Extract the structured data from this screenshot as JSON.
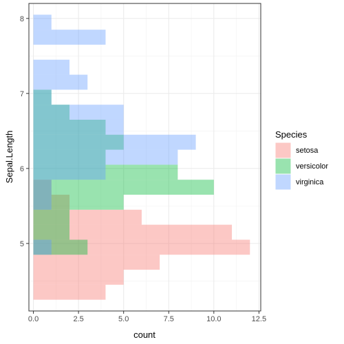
{
  "chart_data": {
    "type": "bar",
    "orientation": "horizontal-histogram",
    "xlabel": "count",
    "ylabel": "Sepal.Length",
    "xlim": [
      -0.25,
      12.6
    ],
    "ylim": [
      4.1,
      8.2
    ],
    "x_ticks": [
      0,
      2.5,
      5,
      7.5,
      10,
      12.5
    ],
    "x_tick_labels": [
      "0.0",
      "2.5",
      "5.0",
      "7.5",
      "10.0",
      "12.5"
    ],
    "y_ticks": [
      5,
      6,
      7,
      8
    ],
    "y_tick_labels": [
      "5",
      "6",
      "7",
      "8"
    ],
    "grid": true,
    "legend": {
      "title": "Species",
      "position": "right"
    },
    "bin_edges": [
      4.25,
      4.45,
      4.65,
      4.85,
      5.05,
      5.25,
      5.45,
      5.65,
      5.85,
      6.05,
      6.25,
      6.45,
      6.65,
      6.85,
      7.05,
      7.25,
      7.45,
      7.65,
      7.85,
      8.05
    ],
    "series": [
      {
        "name": "setosa",
        "color": "#F8766D",
        "counts": [
          4,
          5,
          7,
          12,
          11,
          6,
          2,
          1,
          0,
          0,
          0,
          0,
          0,
          0,
          0,
          0,
          0,
          0,
          0
        ]
      },
      {
        "name": "versicolor",
        "color": "#00BA38",
        "counts": [
          0,
          0,
          0,
          3,
          2,
          2,
          5,
          10,
          8,
          4,
          5,
          4,
          2,
          1,
          0,
          0,
          0,
          0,
          0
        ]
      },
      {
        "name": "virginica",
        "color": "#619CFF",
        "counts": [
          0,
          0,
          0,
          1,
          0,
          0,
          1,
          1,
          4,
          8,
          9,
          5,
          5,
          1,
          3,
          2,
          0,
          4,
          1
        ]
      }
    ]
  }
}
